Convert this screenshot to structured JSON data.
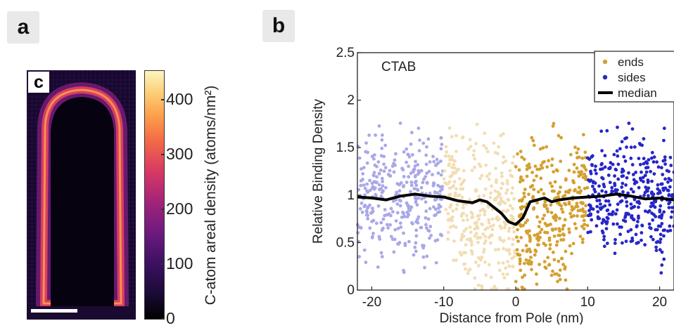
{
  "panels": {
    "a": "a",
    "b": "b",
    "c": "c"
  },
  "colorbar": {
    "label": "C-atom areal density (atoms/nm²)",
    "ticks": [
      "0",
      "100",
      "200",
      "300",
      "400"
    ],
    "range": [
      0,
      450
    ],
    "colormap": "magma"
  },
  "chart_data": {
    "type": "scatter",
    "title": "CTAB",
    "xlabel": "Distance from Pole (nm)",
    "ylabel": "Relative Binding Density",
    "xlim": [
      -22,
      22
    ],
    "ylim": [
      0,
      2.5
    ],
    "xticks": [
      "-20",
      "-10",
      "0",
      "10",
      "20"
    ],
    "yticks": [
      "0",
      "0.5",
      "1",
      "1.5",
      "2",
      "2.5"
    ],
    "legend": {
      "placement": "top-right",
      "entries": [
        "ends",
        "sides",
        "median"
      ]
    },
    "colors": {
      "ends": "#d4a030",
      "sides": "#2626c8",
      "ends_light": "#f1ddb2",
      "sides_light": "#a8a8e8",
      "median": "#000000"
    },
    "series": [
      {
        "name": "median",
        "x": [
          -22,
          -20,
          -18,
          -16,
          -14,
          -12,
          -10,
          -8,
          -6,
          -5,
          -4,
          -3,
          -2,
          -1,
          0,
          1,
          2,
          4,
          5,
          6,
          8,
          10,
          12,
          14,
          16,
          18,
          20,
          22
        ],
        "y": [
          0.98,
          0.97,
          0.95,
          0.99,
          1.01,
          0.99,
          0.98,
          0.94,
          0.92,
          0.95,
          0.93,
          0.87,
          0.81,
          0.72,
          0.69,
          0.76,
          0.93,
          0.97,
          0.93,
          0.95,
          0.97,
          0.98,
          0.99,
          1.01,
          0.99,
          0.96,
          0.97,
          0.95
        ]
      }
    ]
  }
}
